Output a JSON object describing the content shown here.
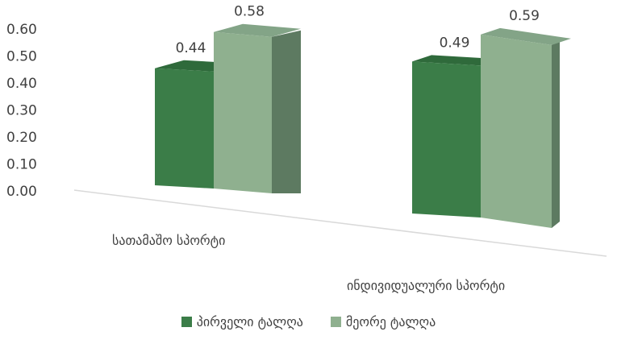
{
  "chart_data": {
    "type": "bar",
    "categories": [
      "სათამაშო სპორტი",
      "ინდივიდუალური სპორტი"
    ],
    "series": [
      {
        "name": "პირველი ტალღა",
        "values": [
          0.44,
          0.49
        ],
        "labels": [
          "0.44",
          "0.49"
        ]
      },
      {
        "name": "მეორე ტალღა",
        "values": [
          0.58,
          0.59
        ],
        "labels": [
          "0.58",
          "0.59"
        ]
      }
    ],
    "yticks": [
      "0.00",
      "0.10",
      "0.20",
      "0.30",
      "0.40",
      "0.50",
      "0.60"
    ],
    "ylim": [
      0,
      0.6
    ],
    "grid": false,
    "legend": "bottom",
    "colors": {
      "series1": "#3b7d48",
      "series1_side": "#2c5e37",
      "series1_top": "#2f6a3b",
      "series2": "#8fb08f",
      "series2_side": "#5d7a61",
      "series2_top": "#83a487",
      "text": "#404040",
      "floor": "#d9d9d9"
    }
  }
}
